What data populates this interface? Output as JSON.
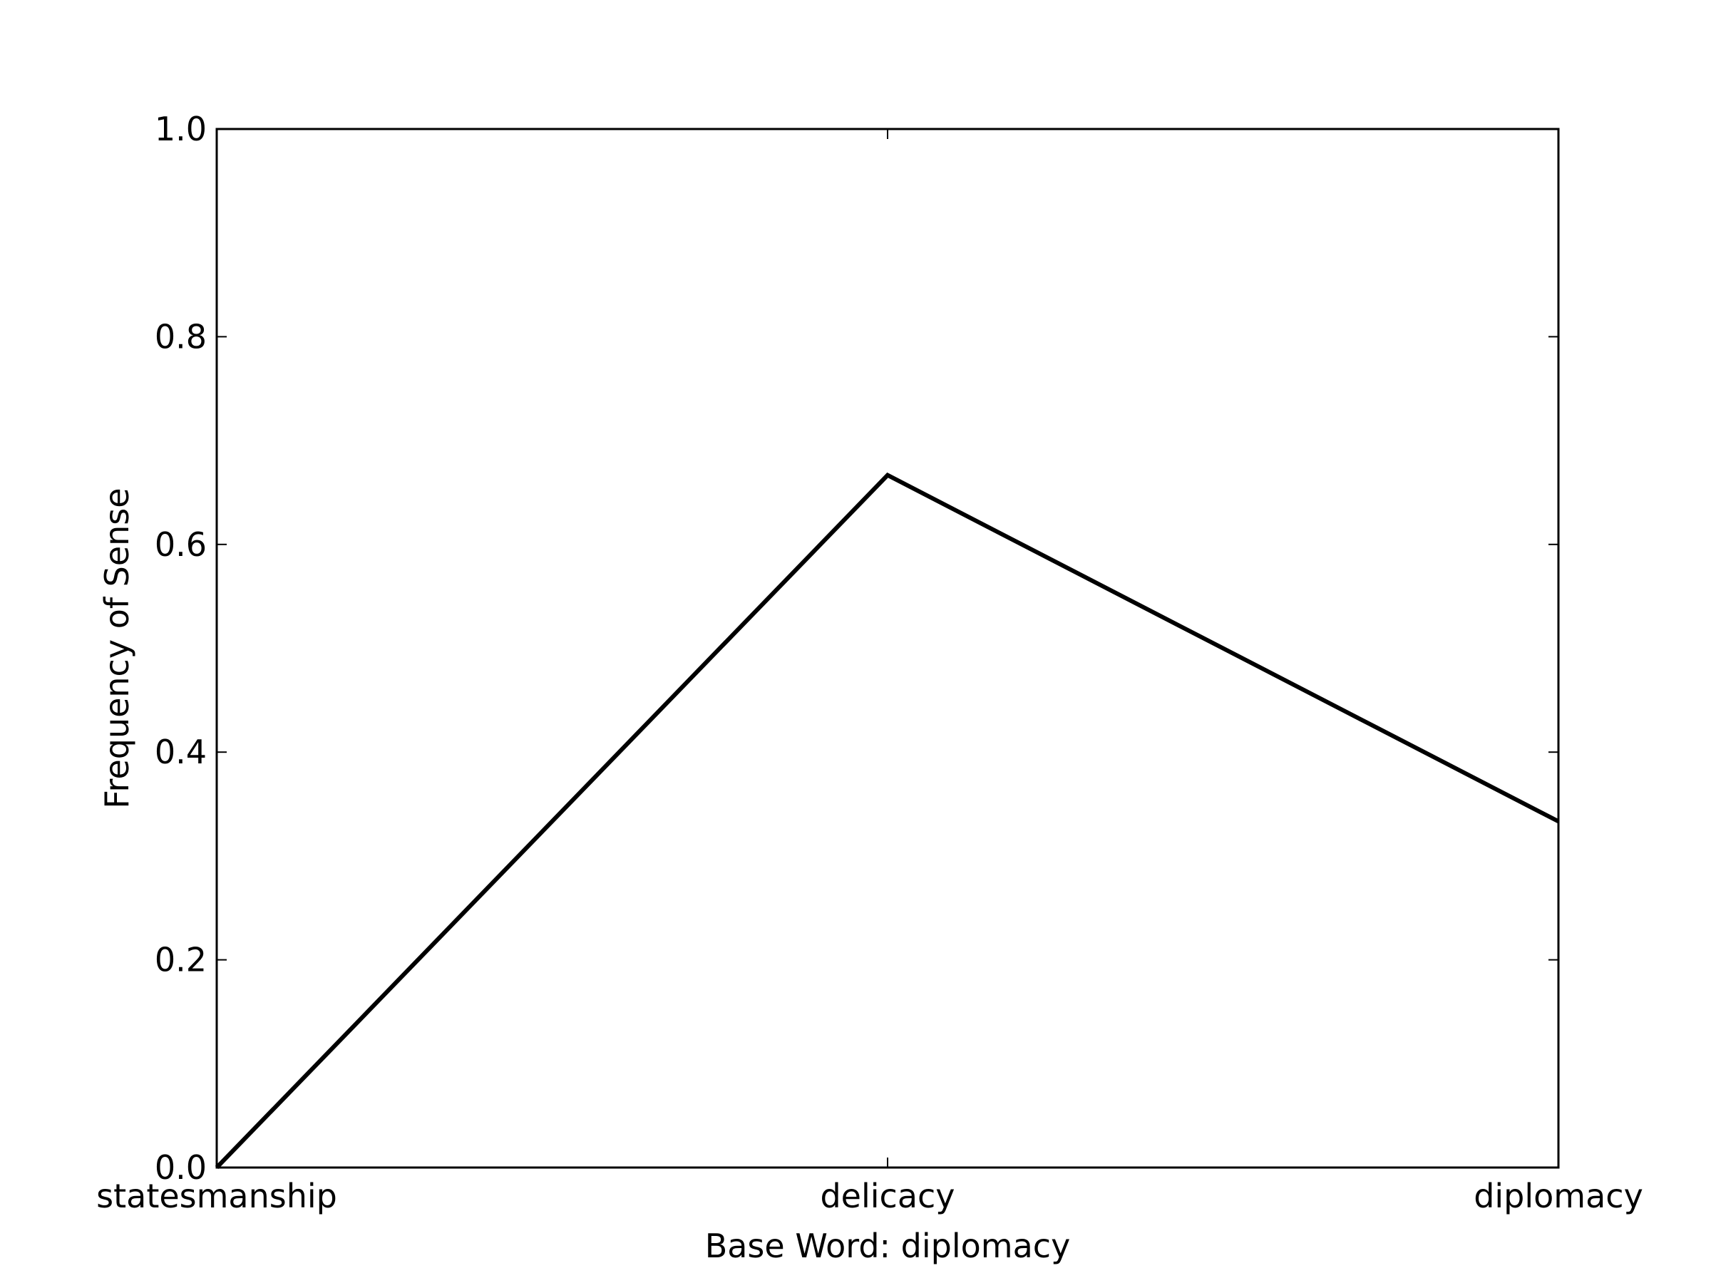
{
  "chart_data": {
    "type": "line",
    "title": "",
    "xlabel": "Base Word: diplomacy",
    "ylabel": "Frequency of Sense",
    "categories": [
      "statesmanship",
      "delicacy",
      "diplomacy"
    ],
    "series": [
      {
        "values": [
          0.0,
          0.6667,
          0.3333
        ]
      }
    ],
    "ylim": [
      0.0,
      1.0
    ],
    "yticks": [
      0.0,
      0.2,
      0.4,
      0.6,
      0.8,
      1.0
    ],
    "ytick_labels": [
      "0.0",
      "0.2",
      "0.4",
      "0.6",
      "0.8",
      "1.0"
    ],
    "grid": false,
    "legend": "none",
    "colors": {
      "line": "#000000",
      "axes": "#000000",
      "background": "#ffffff"
    }
  }
}
